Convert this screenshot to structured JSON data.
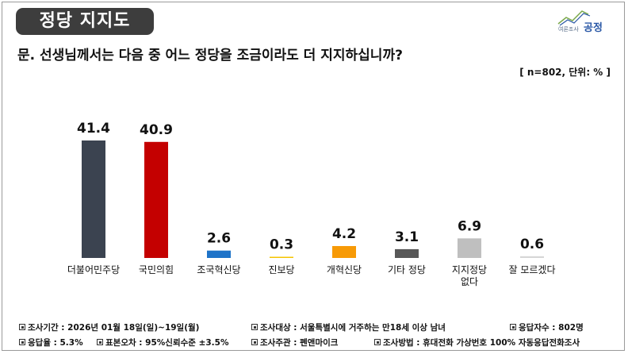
{
  "header": {
    "title": "정당 지지도",
    "logo_sub": "여론조사",
    "logo_main": "공정"
  },
  "question": "문. 선생님께서는 다음 중 어느 정당을 조금이라도 더 지지하십니까?",
  "sample_note": "[ n=802, 단위: % ]",
  "chart_data": {
    "type": "bar",
    "categories": [
      "더불어민주당",
      "국민의힘",
      "조국혁신당",
      "진보당",
      "개혁신당",
      "기타 정당",
      "지지정당\n없다",
      "잘 모르겠다"
    ],
    "values": [
      41.4,
      40.9,
      2.6,
      0.3,
      4.2,
      3.1,
      6.9,
      0.6
    ],
    "value_labels": [
      "41.4",
      "40.9",
      "2.6",
      "0.3",
      "4.2",
      "3.1",
      "6.9",
      "0.6"
    ],
    "colors": [
      "#3b4350",
      "#c40000",
      "#1e73c8",
      "#f5c400",
      "#f79a06",
      "#585858",
      "#bfbfbf",
      "#d6d6d6"
    ],
    "ylim": [
      0,
      41.4
    ],
    "grid": false,
    "legend": "none"
  },
  "footer": {
    "items": [
      "조사기간 : 2026년 01월 18일(일)~19일(월)",
      "조사대상 : 서울특별시에 거주하는 만18세 이상 남녀",
      "응답자수 : 802명",
      "응답율 : 5.3%",
      "표본오차 : 95%신뢰수준 ±3.5%",
      "조사주관 : 펜앤마이크",
      "조사방법 : 휴대전화 가상번호 100% 자동응답전화조사"
    ]
  }
}
